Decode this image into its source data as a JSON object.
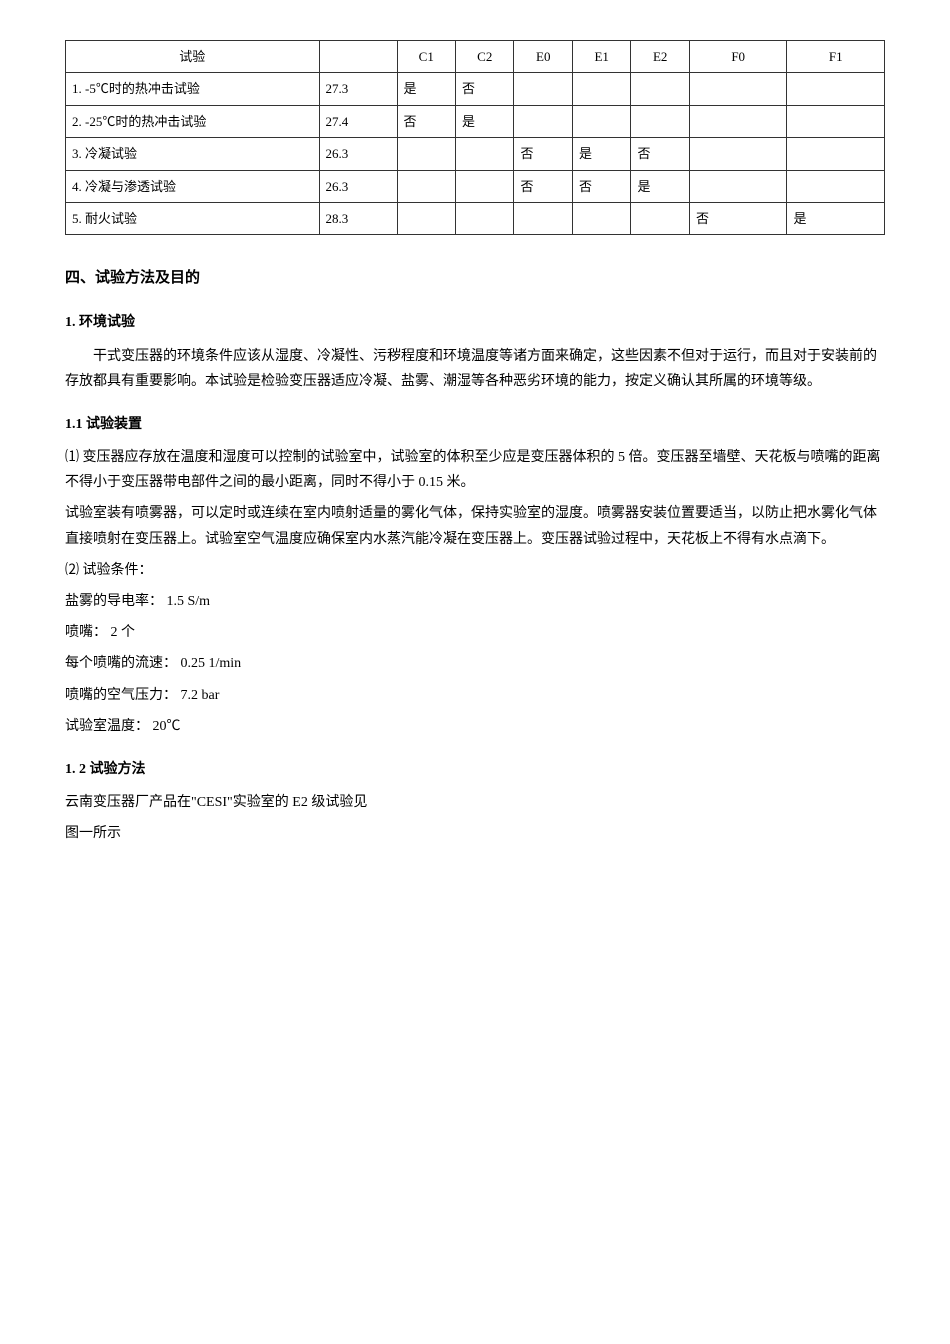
{
  "table": {
    "headers": [
      "试验",
      "",
      "C1",
      "C2",
      "E0",
      "E1",
      "E2",
      "F0",
      "F1"
    ],
    "rows": [
      [
        "1. -5℃时的热冲击试验",
        "27.3",
        "是",
        "否",
        "",
        "",
        "",
        "",
        ""
      ],
      [
        "2. -25℃时的热冲击试验",
        "27.4",
        "否",
        "是",
        "",
        "",
        "",
        "",
        ""
      ],
      [
        "3. 冷凝试验",
        "26.3",
        "",
        "",
        "否",
        "是",
        "否",
        "",
        ""
      ],
      [
        "4. 冷凝与渗透试验",
        "26.3",
        "",
        "",
        "否",
        "否",
        "是",
        "",
        ""
      ],
      [
        "5. 耐火试验",
        "28.3",
        "",
        "",
        "",
        "",
        "",
        "否",
        "是"
      ]
    ]
  },
  "section4": {
    "title": "四、试验方法及目的",
    "sub1": {
      "title": "1.  环境试验",
      "para": "干式变压器的环境条件应该从湿度、冷凝性、污秽程度和环境温度等诸方面来确定，这些因素不但对于运行，而且对于安装前的存放都具有重要影响。本试验是检验变压器适应冷凝、盐雾、潮湿等各种恶劣环境的能力，按定义确认其所属的环境等级。"
    },
    "sub11": {
      "title": "1.1 试验装置",
      "item1": "⑴  变压器应存放在温度和湿度可以控制的试验室中，试验室的体积至少应是变压器体积的 5 倍。变压器至墙壁、天花板与喷嘴的距离不得小于变压器带电部件之间的最小距离，同时不得小于 0.15 米。",
      "para2": "试验室装有喷雾器，可以定时或连续在室内喷射适量的雾化气体，保持实验室的湿度。喷雾器安装位置要适当，以防止把水雾化气体直接喷射在变压器上。试验室空气温度应确保室内水蒸汽能冷凝在变压器上。变压器试验过程中，天花板上不得有水点滴下。",
      "item2_title": "⑵  试验条件：",
      "cond1": "盐雾的导电率：  1.5 S/m",
      "cond2": "喷嘴：  2 个",
      "cond3": "每个喷嘴的流速：  0.25 1/min",
      "cond4": "喷嘴的空气压力：  7.2 bar",
      "cond5": "试验室温度：  20℃"
    },
    "sub12": {
      "title": "1. 2 试验方法",
      "para1": "云南变压器厂产品在\"CESI\"实验室的 E2 级试验见",
      "para2": "图一所示"
    }
  }
}
